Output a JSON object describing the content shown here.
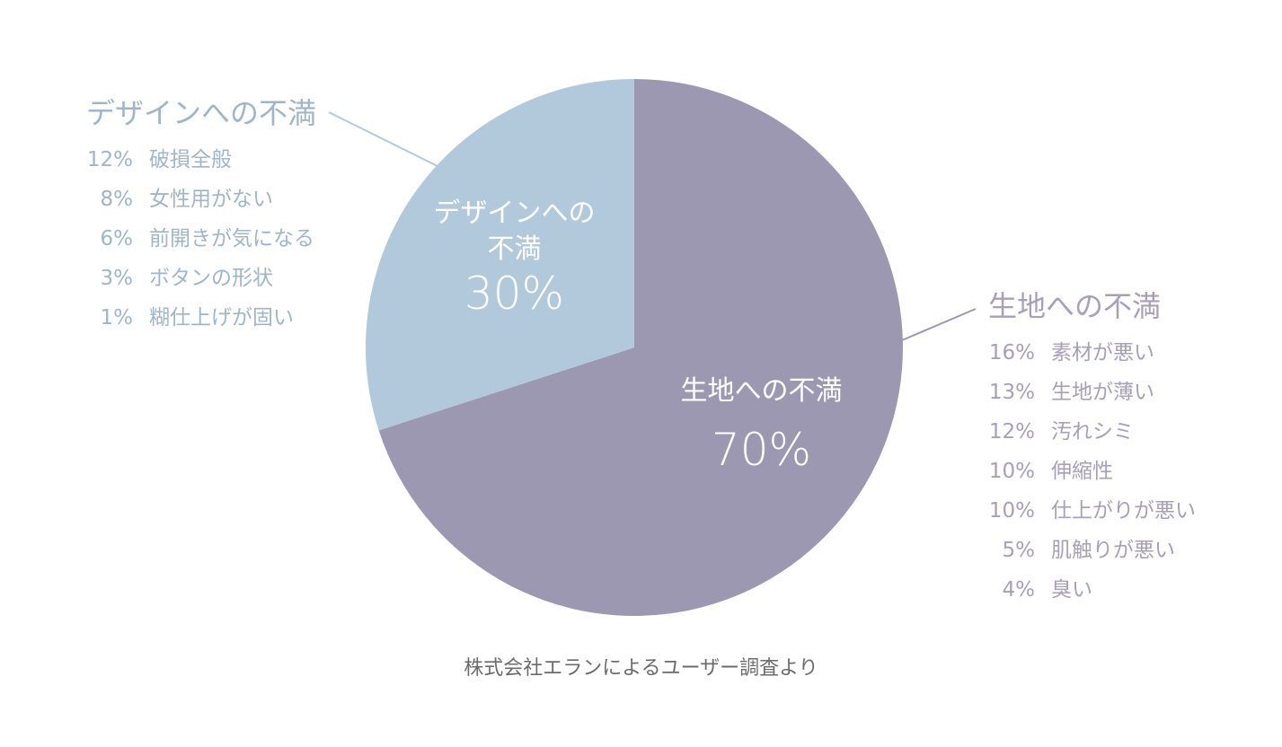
{
  "chart_data": {
    "type": "pie",
    "slices": [
      {
        "name": "生地への不満",
        "label_lines": [
          "生地への不満"
        ],
        "value": 70,
        "value_text": "70%",
        "color": "#9d98b2"
      },
      {
        "name": "デザインへの不満",
        "label_lines": [
          "デザインへの",
          "不満"
        ],
        "value": 30,
        "value_text": "30%",
        "color": "#b2c9dc"
      }
    ],
    "callouts": {
      "design": {
        "title": "デザインへの不満",
        "items": [
          {
            "pct": "12%",
            "label": "破損全般"
          },
          {
            "pct": "8%",
            "label": "女性用がない"
          },
          {
            "pct": "6%",
            "label": "前開きが気になる"
          },
          {
            "pct": "3%",
            "label": "ボタンの形状"
          },
          {
            "pct": "1%",
            "label": "糊仕上げが固い"
          }
        ]
      },
      "fabric": {
        "title": "生地への不満",
        "items": [
          {
            "pct": "16%",
            "label": "素材が悪い"
          },
          {
            "pct": "13%",
            "label": "生地が薄い"
          },
          {
            "pct": "12%",
            "label": "汚れシミ"
          },
          {
            "pct": "10%",
            "label": "伸縮性"
          },
          {
            "pct": "10%",
            "label": "仕上がりが悪い"
          },
          {
            "pct": "5%",
            "label": "肌触りが悪い"
          },
          {
            "pct": "4%",
            "label": "臭い"
          }
        ]
      }
    },
    "source": "株式会社エランによるユーザー調査より"
  }
}
